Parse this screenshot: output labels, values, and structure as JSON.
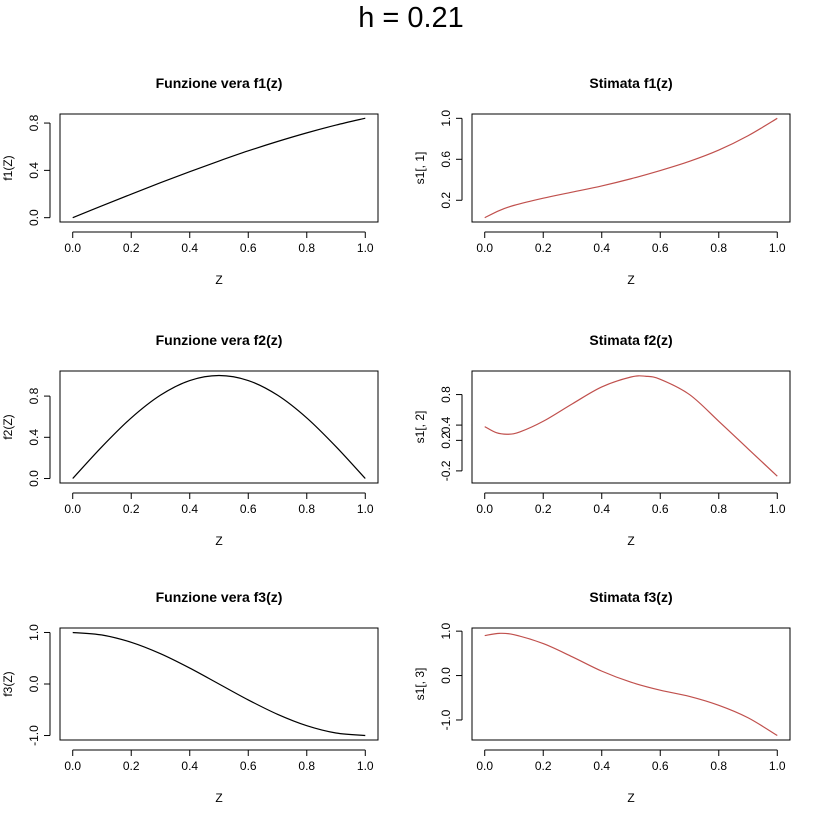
{
  "figure": {
    "title": "h = 0.21"
  },
  "chart_data": [
    {
      "type": "line",
      "title": "Funzione vera f1(z)",
      "xlabel": "Z",
      "ylabel": "f1(Z)",
      "xlim": [
        0,
        1
      ],
      "ylim": [
        0,
        0.84
      ],
      "xticks": [
        "0.0",
        "0.2",
        "0.4",
        "0.6",
        "0.8",
        "1.0"
      ],
      "yticks": [
        "0.0",
        "0.4",
        "0.8"
      ],
      "color": "#000000",
      "series": [
        {
          "x": [
            0,
            0.1,
            0.2,
            0.3,
            0.4,
            0.5,
            0.6,
            0.7,
            0.8,
            0.9,
            1.0
          ],
          "y": [
            0,
            0.1,
            0.199,
            0.296,
            0.389,
            0.479,
            0.565,
            0.644,
            0.717,
            0.783,
            0.841
          ]
        }
      ]
    },
    {
      "type": "line",
      "title": "Stimata f1(z)",
      "xlabel": "Z",
      "ylabel": "s1[, 1]",
      "xlim": [
        0,
        1
      ],
      "ylim": [
        0.03,
        1.0
      ],
      "xticks": [
        "0.0",
        "0.2",
        "0.4",
        "0.6",
        "0.8",
        "1.0"
      ],
      "yticks": [
        "0.2",
        "0.6",
        "1.0"
      ],
      "color": "#c0504d",
      "series": [
        {
          "x": [
            0,
            0.05,
            0.1,
            0.2,
            0.3,
            0.4,
            0.5,
            0.6,
            0.7,
            0.8,
            0.9,
            1.0
          ],
          "y": [
            0.03,
            0.1,
            0.15,
            0.22,
            0.28,
            0.34,
            0.41,
            0.49,
            0.58,
            0.69,
            0.83,
            1.0
          ]
        }
      ]
    },
    {
      "type": "line",
      "title": "Funzione vera f2(z)",
      "xlabel": "Z",
      "ylabel": "f2(Z)",
      "xlim": [
        0,
        1
      ],
      "ylim": [
        0,
        1
      ],
      "xticks": [
        "0.0",
        "0.2",
        "0.4",
        "0.6",
        "0.8",
        "1.0"
      ],
      "yticks": [
        "0.0",
        "0.4",
        "0.8"
      ],
      "color": "#000000",
      "series": [
        {
          "x": [
            0,
            0.1,
            0.2,
            0.3,
            0.4,
            0.5,
            0.6,
            0.7,
            0.8,
            0.9,
            1.0
          ],
          "y": [
            0,
            0.309,
            0.588,
            0.809,
            0.951,
            1.0,
            0.951,
            0.809,
            0.588,
            0.309,
            0
          ]
        }
      ]
    },
    {
      "type": "line",
      "title": "Stimata f2(z)",
      "xlabel": "Z",
      "ylabel": "s1[, 2]",
      "xlim": [
        0,
        1
      ],
      "ylim": [
        -0.3,
        1.05
      ],
      "xticks": [
        "0.0",
        "0.2",
        "0.4",
        "0.6",
        "0.8",
        "1.0"
      ],
      "yticks": [
        "-0.2",
        "0.2",
        "0.4",
        "0.8"
      ],
      "color": "#c0504d",
      "series": [
        {
          "x": [
            0,
            0.04,
            0.08,
            0.12,
            0.2,
            0.3,
            0.4,
            0.5,
            0.55,
            0.6,
            0.7,
            0.8,
            0.9,
            1.0
          ],
          "y": [
            0.38,
            0.3,
            0.28,
            0.31,
            0.45,
            0.68,
            0.9,
            1.03,
            1.04,
            1.0,
            0.8,
            0.45,
            0.09,
            -0.27
          ]
        }
      ]
    },
    {
      "type": "line",
      "title": "Funzione vera f3(z)",
      "xlabel": "Z",
      "ylabel": "f3(Z)",
      "xlim": [
        0,
        1
      ],
      "ylim": [
        -1,
        1
      ],
      "xticks": [
        "0.0",
        "0.2",
        "0.4",
        "0.6",
        "0.8",
        "1.0"
      ],
      "yticks": [
        "-1.0",
        "0.0",
        "1.0"
      ],
      "color": "#000000",
      "series": [
        {
          "x": [
            0,
            0.1,
            0.2,
            0.3,
            0.4,
            0.5,
            0.6,
            0.7,
            0.8,
            0.9,
            1.0
          ],
          "y": [
            1,
            0.951,
            0.809,
            0.588,
            0.309,
            0,
            -0.309,
            -0.588,
            -0.809,
            -0.951,
            -1
          ]
        }
      ]
    },
    {
      "type": "line",
      "title": "Stimata f3(z)",
      "xlabel": "Z",
      "ylabel": "s1[, 3]",
      "xlim": [
        0,
        1
      ],
      "ylim": [
        -1.35,
        0.97
      ],
      "xticks": [
        "0.0",
        "0.2",
        "0.4",
        "0.6",
        "0.8",
        "1.0"
      ],
      "yticks": [
        "-1.0",
        "0.0",
        "1.0"
      ],
      "color": "#c0504d",
      "series": [
        {
          "x": [
            0,
            0.05,
            0.1,
            0.2,
            0.3,
            0.4,
            0.5,
            0.6,
            0.7,
            0.8,
            0.9,
            1.0
          ],
          "y": [
            0.9,
            0.95,
            0.92,
            0.72,
            0.42,
            0.1,
            -0.15,
            -0.33,
            -0.47,
            -0.67,
            -0.95,
            -1.35
          ]
        }
      ]
    }
  ]
}
